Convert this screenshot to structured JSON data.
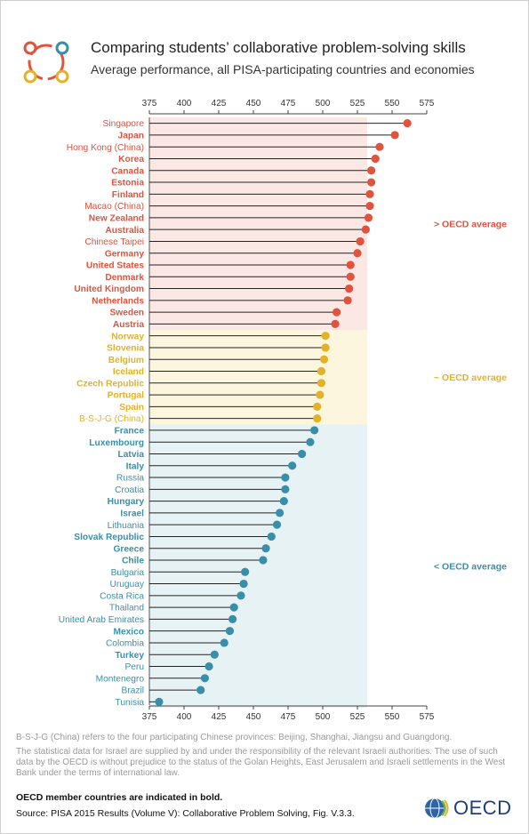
{
  "header": {
    "title": "Comparing students’ collaborative problem-solving skills",
    "subtitle": "Average performance, all PISA-participating countries and economies"
  },
  "colors": {
    "above": "#e0533d",
    "similar": "#e3b22b",
    "below": "#3a8fa8",
    "bg_above": "#fbe7e4",
    "bg_similar": "#fbf6dd",
    "bg_below": "#e7f2f5"
  },
  "chart_data": {
    "type": "lollipop",
    "x_axis_range": [
      375,
      575
    ],
    "x_ticks": [
      375,
      400,
      425,
      450,
      475,
      500,
      525,
      550,
      575
    ],
    "x_tick_position": "top and bottom",
    "group_labels": {
      "above": "> OECD average",
      "similar": "~ OECD average",
      "below": "< OECD average"
    },
    "rows": [
      {
        "name": "Singapore",
        "value": 561,
        "group": "above",
        "oecd": false
      },
      {
        "name": "Japan",
        "value": 552,
        "group": "above",
        "oecd": true
      },
      {
        "name": "Hong Kong (China)",
        "value": 541,
        "group": "above",
        "oecd": false
      },
      {
        "name": "Korea",
        "value": 538,
        "group": "above",
        "oecd": true
      },
      {
        "name": "Canada",
        "value": 535,
        "group": "above",
        "oecd": true
      },
      {
        "name": "Estonia",
        "value": 535,
        "group": "above",
        "oecd": true
      },
      {
        "name": "Finland",
        "value": 534,
        "group": "above",
        "oecd": true
      },
      {
        "name": "Macao (China)",
        "value": 534,
        "group": "above",
        "oecd": false
      },
      {
        "name": "New Zealand",
        "value": 533,
        "group": "above",
        "oecd": true
      },
      {
        "name": "Australia",
        "value": 531,
        "group": "above",
        "oecd": true
      },
      {
        "name": "Chinese Taipei",
        "value": 527,
        "group": "above",
        "oecd": false
      },
      {
        "name": "Germany",
        "value": 525,
        "group": "above",
        "oecd": true
      },
      {
        "name": "United States",
        "value": 520,
        "group": "above",
        "oecd": true
      },
      {
        "name": "Denmark",
        "value": 520,
        "group": "above",
        "oecd": true
      },
      {
        "name": "United Kingdom",
        "value": 519,
        "group": "above",
        "oecd": true
      },
      {
        "name": "Netherlands",
        "value": 518,
        "group": "above",
        "oecd": true
      },
      {
        "name": "Sweden",
        "value": 510,
        "group": "above",
        "oecd": true
      },
      {
        "name": "Austria",
        "value": 509,
        "group": "above",
        "oecd": true
      },
      {
        "name": "Norway",
        "value": 502,
        "group": "similar",
        "oecd": true
      },
      {
        "name": "Slovenia",
        "value": 502,
        "group": "similar",
        "oecd": true
      },
      {
        "name": "Belgium",
        "value": 501,
        "group": "similar",
        "oecd": true
      },
      {
        "name": "Iceland",
        "value": 499,
        "group": "similar",
        "oecd": true
      },
      {
        "name": "Czech Republic",
        "value": 499,
        "group": "similar",
        "oecd": true
      },
      {
        "name": "Portugal",
        "value": 498,
        "group": "similar",
        "oecd": true
      },
      {
        "name": "Spain",
        "value": 496,
        "group": "similar",
        "oecd": true
      },
      {
        "name": "B-S-J-G (China)",
        "value": 496,
        "group": "similar",
        "oecd": false
      },
      {
        "name": "France",
        "value": 494,
        "group": "below",
        "oecd": true
      },
      {
        "name": "Luxembourg",
        "value": 491,
        "group": "below",
        "oecd": true
      },
      {
        "name": "Latvia",
        "value": 485,
        "group": "below",
        "oecd": true
      },
      {
        "name": "Italy",
        "value": 478,
        "group": "below",
        "oecd": true
      },
      {
        "name": "Russia",
        "value": 473,
        "group": "below",
        "oecd": false
      },
      {
        "name": "Croatia",
        "value": 473,
        "group": "below",
        "oecd": false
      },
      {
        "name": "Hungary",
        "value": 472,
        "group": "below",
        "oecd": true
      },
      {
        "name": "Israel",
        "value": 469,
        "group": "below",
        "oecd": true
      },
      {
        "name": "Lithuania",
        "value": 467,
        "group": "below",
        "oecd": false
      },
      {
        "name": "Slovak Republic",
        "value": 463,
        "group": "below",
        "oecd": true
      },
      {
        "name": "Greece",
        "value": 459,
        "group": "below",
        "oecd": true
      },
      {
        "name": "Chile",
        "value": 457,
        "group": "below",
        "oecd": true
      },
      {
        "name": "Bulgaria",
        "value": 444,
        "group": "below",
        "oecd": false
      },
      {
        "name": "Uruguay",
        "value": 443,
        "group": "below",
        "oecd": false
      },
      {
        "name": "Costa Rica",
        "value": 441,
        "group": "below",
        "oecd": false
      },
      {
        "name": "Thailand",
        "value": 436,
        "group": "below",
        "oecd": false
      },
      {
        "name": "United Arab Emirates",
        "value": 435,
        "group": "below",
        "oecd": false
      },
      {
        "name": "Mexico",
        "value": 433,
        "group": "below",
        "oecd": true
      },
      {
        "name": "Colombia",
        "value": 429,
        "group": "below",
        "oecd": false
      },
      {
        "name": "Turkey",
        "value": 422,
        "group": "below",
        "oecd": true
      },
      {
        "name": "Peru",
        "value": 418,
        "group": "below",
        "oecd": false
      },
      {
        "name": "Montenegro",
        "value": 415,
        "group": "below",
        "oecd": false
      },
      {
        "name": "Brazil",
        "value": 412,
        "group": "below",
        "oecd": false
      },
      {
        "name": "Tunisia",
        "value": 382,
        "group": "below",
        "oecd": false
      }
    ]
  },
  "notes": {
    "bsjg": "B-S-J-G (China) refers to the four participating Chinese provinces: Beijing, Shanghai, Jiangsu and Guangdong.",
    "israel": "The statistical data for Israel are supplied by and under the responsibility of the relevant Israeli authorities. The use of such data by the OECD is without prejudice to the status of the Golan Heights, East Jerusalem and Israeli settlements in the West Bank under the terms of international law.",
    "bold": "OECD member countries are indicated in bold.",
    "source": "Source: PISA 2015 Results (Volume V): Collaborative Problem Solving, Fig. V.3.3."
  },
  "logo": {
    "text": "OECD",
    "icon": "oecd-globe-icon",
    "header_icon": "collaboration-circles-icon"
  }
}
